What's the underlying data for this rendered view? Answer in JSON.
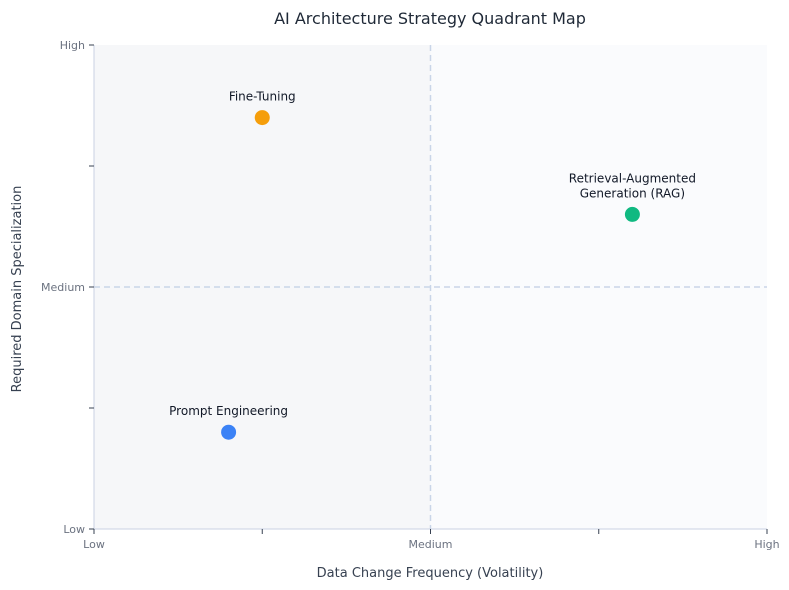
{
  "chart_data": {
    "type": "scatter",
    "title": "AI Architecture Strategy Quadrant Map",
    "xlabel": "Data Change Frequency (Volatility)",
    "ylabel": "Required Domain Specialization",
    "xlim": [
      0,
      1
    ],
    "ylim": [
      0,
      1
    ],
    "x_ticks": [
      {
        "value": 0,
        "label": "Low"
      },
      {
        "value": 0.25,
        "label": ""
      },
      {
        "value": 0.5,
        "label": "Medium"
      },
      {
        "value": 0.75,
        "label": ""
      },
      {
        "value": 1,
        "label": "High"
      }
    ],
    "y_ticks": [
      {
        "value": 0,
        "label": "Low"
      },
      {
        "value": 0.25,
        "label": ""
      },
      {
        "value": 0.5,
        "label": "Medium"
      },
      {
        "value": 0.75,
        "label": ""
      },
      {
        "value": 1,
        "label": "High"
      }
    ],
    "dividers": {
      "x": 0.5,
      "y": 0.5
    },
    "grid": false,
    "quadrant_colors": {
      "light": "#fafbfd",
      "shade": "#f6f7f9"
    },
    "divider_color": "#c9d5e8",
    "axis_color": "#c9d2e3",
    "points": [
      {
        "label_lines": [
          "Prompt Engineering"
        ],
        "x": 0.2,
        "y": 0.2,
        "color": "#3b82f6"
      },
      {
        "label_lines": [
          "Fine-Tuning"
        ],
        "x": 0.25,
        "y": 0.85,
        "color": "#f59e0b"
      },
      {
        "label_lines": [
          "Retrieval-Augmented",
          "Generation (RAG)"
        ],
        "x": 0.8,
        "y": 0.65,
        "color": "#10b981"
      }
    ]
  }
}
